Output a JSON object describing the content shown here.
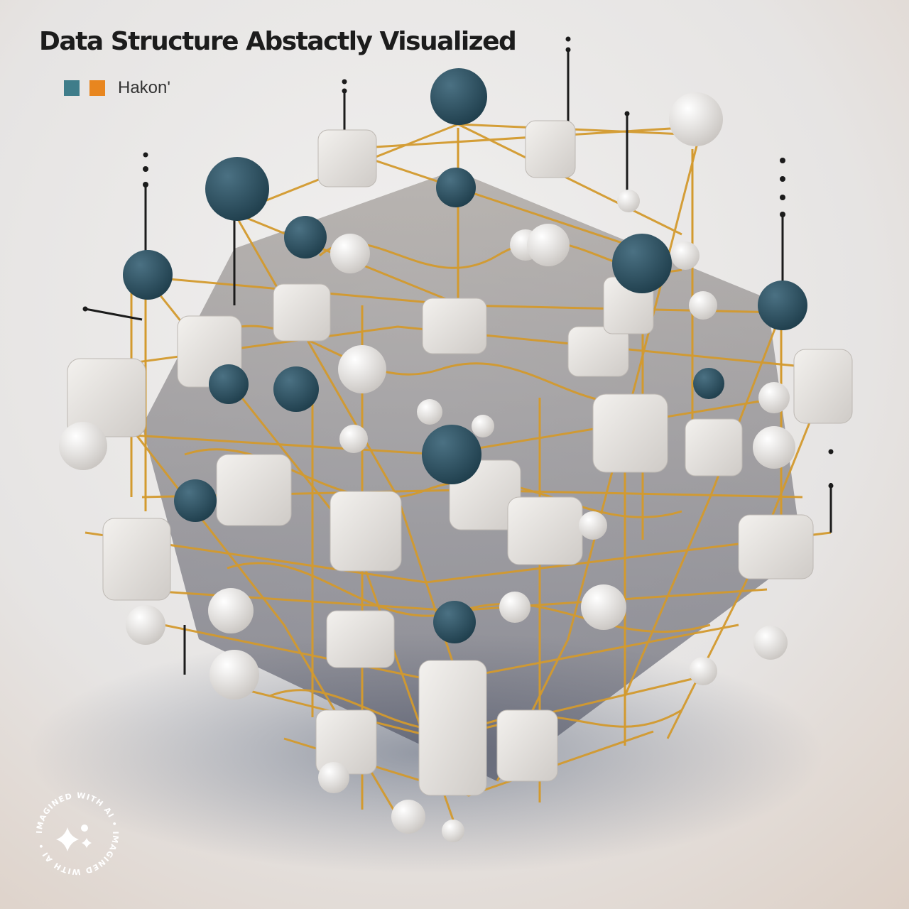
{
  "title": "Data Structure Abstactly Visualized",
  "legend": {
    "label": "Hakon'",
    "swatch_colors": [
      "#3f7d8a",
      "#e8861f"
    ]
  },
  "badge": {
    "text": "IMAGINED WITH AI • IMAGINED WITH AI •"
  },
  "palette": {
    "background_light": "#ecebea",
    "background_warm": "#ead9c9",
    "node_dark": "#2f5566",
    "node_light": "#e9e6e2",
    "wire": "#d39a2e"
  }
}
